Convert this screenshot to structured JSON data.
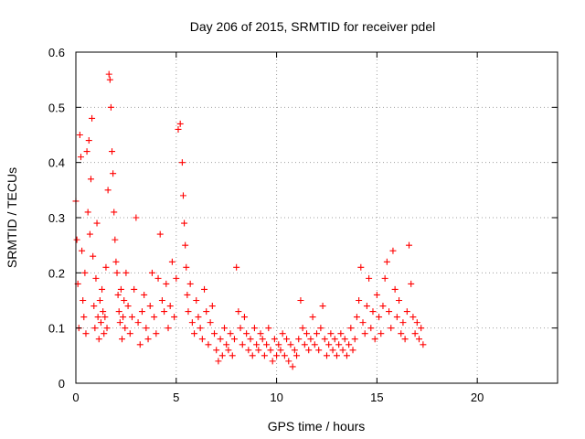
{
  "chart_data": {
    "type": "scatter",
    "title": "Day 206 of 2015, SRMTID for receiver pdel",
    "xlabel": "GPS time / hours",
    "ylabel": "SRMTID / TECUs",
    "xlim": [
      0,
      24
    ],
    "ylim": [
      0,
      0.6
    ],
    "xticks": [
      0,
      5,
      10,
      15,
      20
    ],
    "xtick_labels": [
      "0",
      "5",
      "10",
      "15",
      "20"
    ],
    "yticks": [
      0,
      0.1,
      0.2,
      0.3,
      0.4,
      0.5,
      0.6
    ],
    "ytick_labels": [
      "0",
      "0.1",
      "0.2",
      "0.3",
      "0.4",
      "0.5",
      "0.6"
    ],
    "grid": true,
    "marker": "+",
    "series": [
      {
        "name": "SRMTID",
        "color": "#ff0000",
        "x": [
          0.0,
          0.05,
          0.1,
          0.15,
          0.2,
          0.25,
          0.3,
          0.35,
          0.4,
          0.45,
          0.5,
          0.55,
          0.6,
          0.65,
          0.7,
          0.75,
          0.8,
          0.85,
          0.9,
          0.95,
          1.0,
          1.05,
          1.1,
          1.15,
          1.2,
          1.25,
          1.3,
          1.35,
          1.4,
          1.45,
          1.5,
          1.55,
          1.6,
          1.65,
          1.7,
          1.75,
          1.8,
          1.85,
          1.9,
          1.95,
          2.0,
          2.05,
          2.1,
          2.15,
          2.2,
          2.25,
          2.3,
          2.35,
          2.4,
          2.45,
          2.5,
          2.6,
          2.7,
          2.8,
          2.9,
          3.0,
          3.1,
          3.2,
          3.3,
          3.4,
          3.5,
          3.6,
          3.7,
          3.8,
          3.9,
          4.0,
          4.1,
          4.2,
          4.3,
          4.4,
          4.5,
          4.6,
          4.7,
          4.8,
          4.9,
          5.0,
          5.1,
          5.2,
          5.3,
          5.35,
          5.4,
          5.45,
          5.5,
          5.55,
          5.6,
          5.7,
          5.8,
          5.9,
          6.0,
          6.1,
          6.2,
          6.3,
          6.4,
          6.5,
          6.6,
          6.7,
          6.8,
          6.9,
          7.0,
          7.1,
          7.2,
          7.3,
          7.4,
          7.5,
          7.6,
          7.7,
          7.8,
          7.9,
          8.0,
          8.1,
          8.2,
          8.3,
          8.4,
          8.5,
          8.6,
          8.7,
          8.8,
          8.9,
          9.0,
          9.1,
          9.2,
          9.3,
          9.4,
          9.5,
          9.6,
          9.7,
          9.8,
          9.9,
          10.0,
          10.1,
          10.2,
          10.3,
          10.4,
          10.5,
          10.6,
          10.7,
          10.8,
          10.9,
          11.0,
          11.1,
          11.2,
          11.3,
          11.4,
          11.5,
          11.6,
          11.7,
          11.8,
          11.9,
          12.0,
          12.1,
          12.2,
          12.3,
          12.4,
          12.5,
          12.6,
          12.7,
          12.8,
          12.9,
          13.0,
          13.1,
          13.2,
          13.3,
          13.4,
          13.5,
          13.6,
          13.7,
          13.8,
          13.9,
          14.0,
          14.1,
          14.2,
          14.3,
          14.4,
          14.5,
          14.6,
          14.7,
          14.8,
          14.9,
          15.0,
          15.1,
          15.2,
          15.3,
          15.4,
          15.5,
          15.6,
          15.7,
          15.8,
          15.9,
          16.0,
          16.1,
          16.2,
          16.3,
          16.4,
          16.5,
          16.6,
          16.7,
          16.8,
          16.9,
          17.0,
          17.1,
          17.2,
          17.3
        ],
        "y": [
          0.33,
          0.26,
          0.18,
          0.1,
          0.45,
          0.41,
          0.24,
          0.15,
          0.12,
          0.2,
          0.09,
          0.42,
          0.31,
          0.44,
          0.27,
          0.37,
          0.48,
          0.23,
          0.14,
          0.1,
          0.19,
          0.29,
          0.12,
          0.08,
          0.15,
          0.11,
          0.17,
          0.13,
          0.09,
          0.12,
          0.21,
          0.1,
          0.35,
          0.56,
          0.55,
          0.5,
          0.42,
          0.38,
          0.31,
          0.26,
          0.22,
          0.2,
          0.16,
          0.13,
          0.11,
          0.17,
          0.08,
          0.12,
          0.15,
          0.1,
          0.2,
          0.14,
          0.09,
          0.12,
          0.17,
          0.3,
          0.11,
          0.07,
          0.13,
          0.16,
          0.1,
          0.08,
          0.14,
          0.2,
          0.12,
          0.09,
          0.19,
          0.27,
          0.15,
          0.13,
          0.18,
          0.1,
          0.14,
          0.22,
          0.12,
          0.19,
          0.46,
          0.47,
          0.4,
          0.34,
          0.29,
          0.25,
          0.21,
          0.16,
          0.13,
          0.18,
          0.11,
          0.09,
          0.15,
          0.12,
          0.1,
          0.08,
          0.17,
          0.13,
          0.07,
          0.11,
          0.14,
          0.09,
          0.06,
          0.04,
          0.08,
          0.05,
          0.1,
          0.07,
          0.06,
          0.09,
          0.05,
          0.08,
          0.21,
          0.13,
          0.1,
          0.07,
          0.12,
          0.09,
          0.06,
          0.08,
          0.05,
          0.1,
          0.07,
          0.06,
          0.09,
          0.08,
          0.05,
          0.07,
          0.1,
          0.06,
          0.04,
          0.08,
          0.05,
          0.07,
          0.06,
          0.09,
          0.05,
          0.08,
          0.04,
          0.07,
          0.03,
          0.06,
          0.05,
          0.08,
          0.15,
          0.1,
          0.07,
          0.09,
          0.06,
          0.08,
          0.12,
          0.07,
          0.09,
          0.06,
          0.1,
          0.14,
          0.08,
          0.05,
          0.07,
          0.09,
          0.06,
          0.08,
          0.05,
          0.07,
          0.09,
          0.06,
          0.08,
          0.05,
          0.07,
          0.1,
          0.06,
          0.08,
          0.12,
          0.15,
          0.21,
          0.11,
          0.09,
          0.14,
          0.19,
          0.1,
          0.13,
          0.08,
          0.16,
          0.12,
          0.09,
          0.14,
          0.19,
          0.22,
          0.13,
          0.1,
          0.24,
          0.17,
          0.12,
          0.15,
          0.09,
          0.11,
          0.08,
          0.13,
          0.25,
          0.18,
          0.12,
          0.09,
          0.11,
          0.08,
          0.1,
          0.07
        ]
      }
    ]
  }
}
